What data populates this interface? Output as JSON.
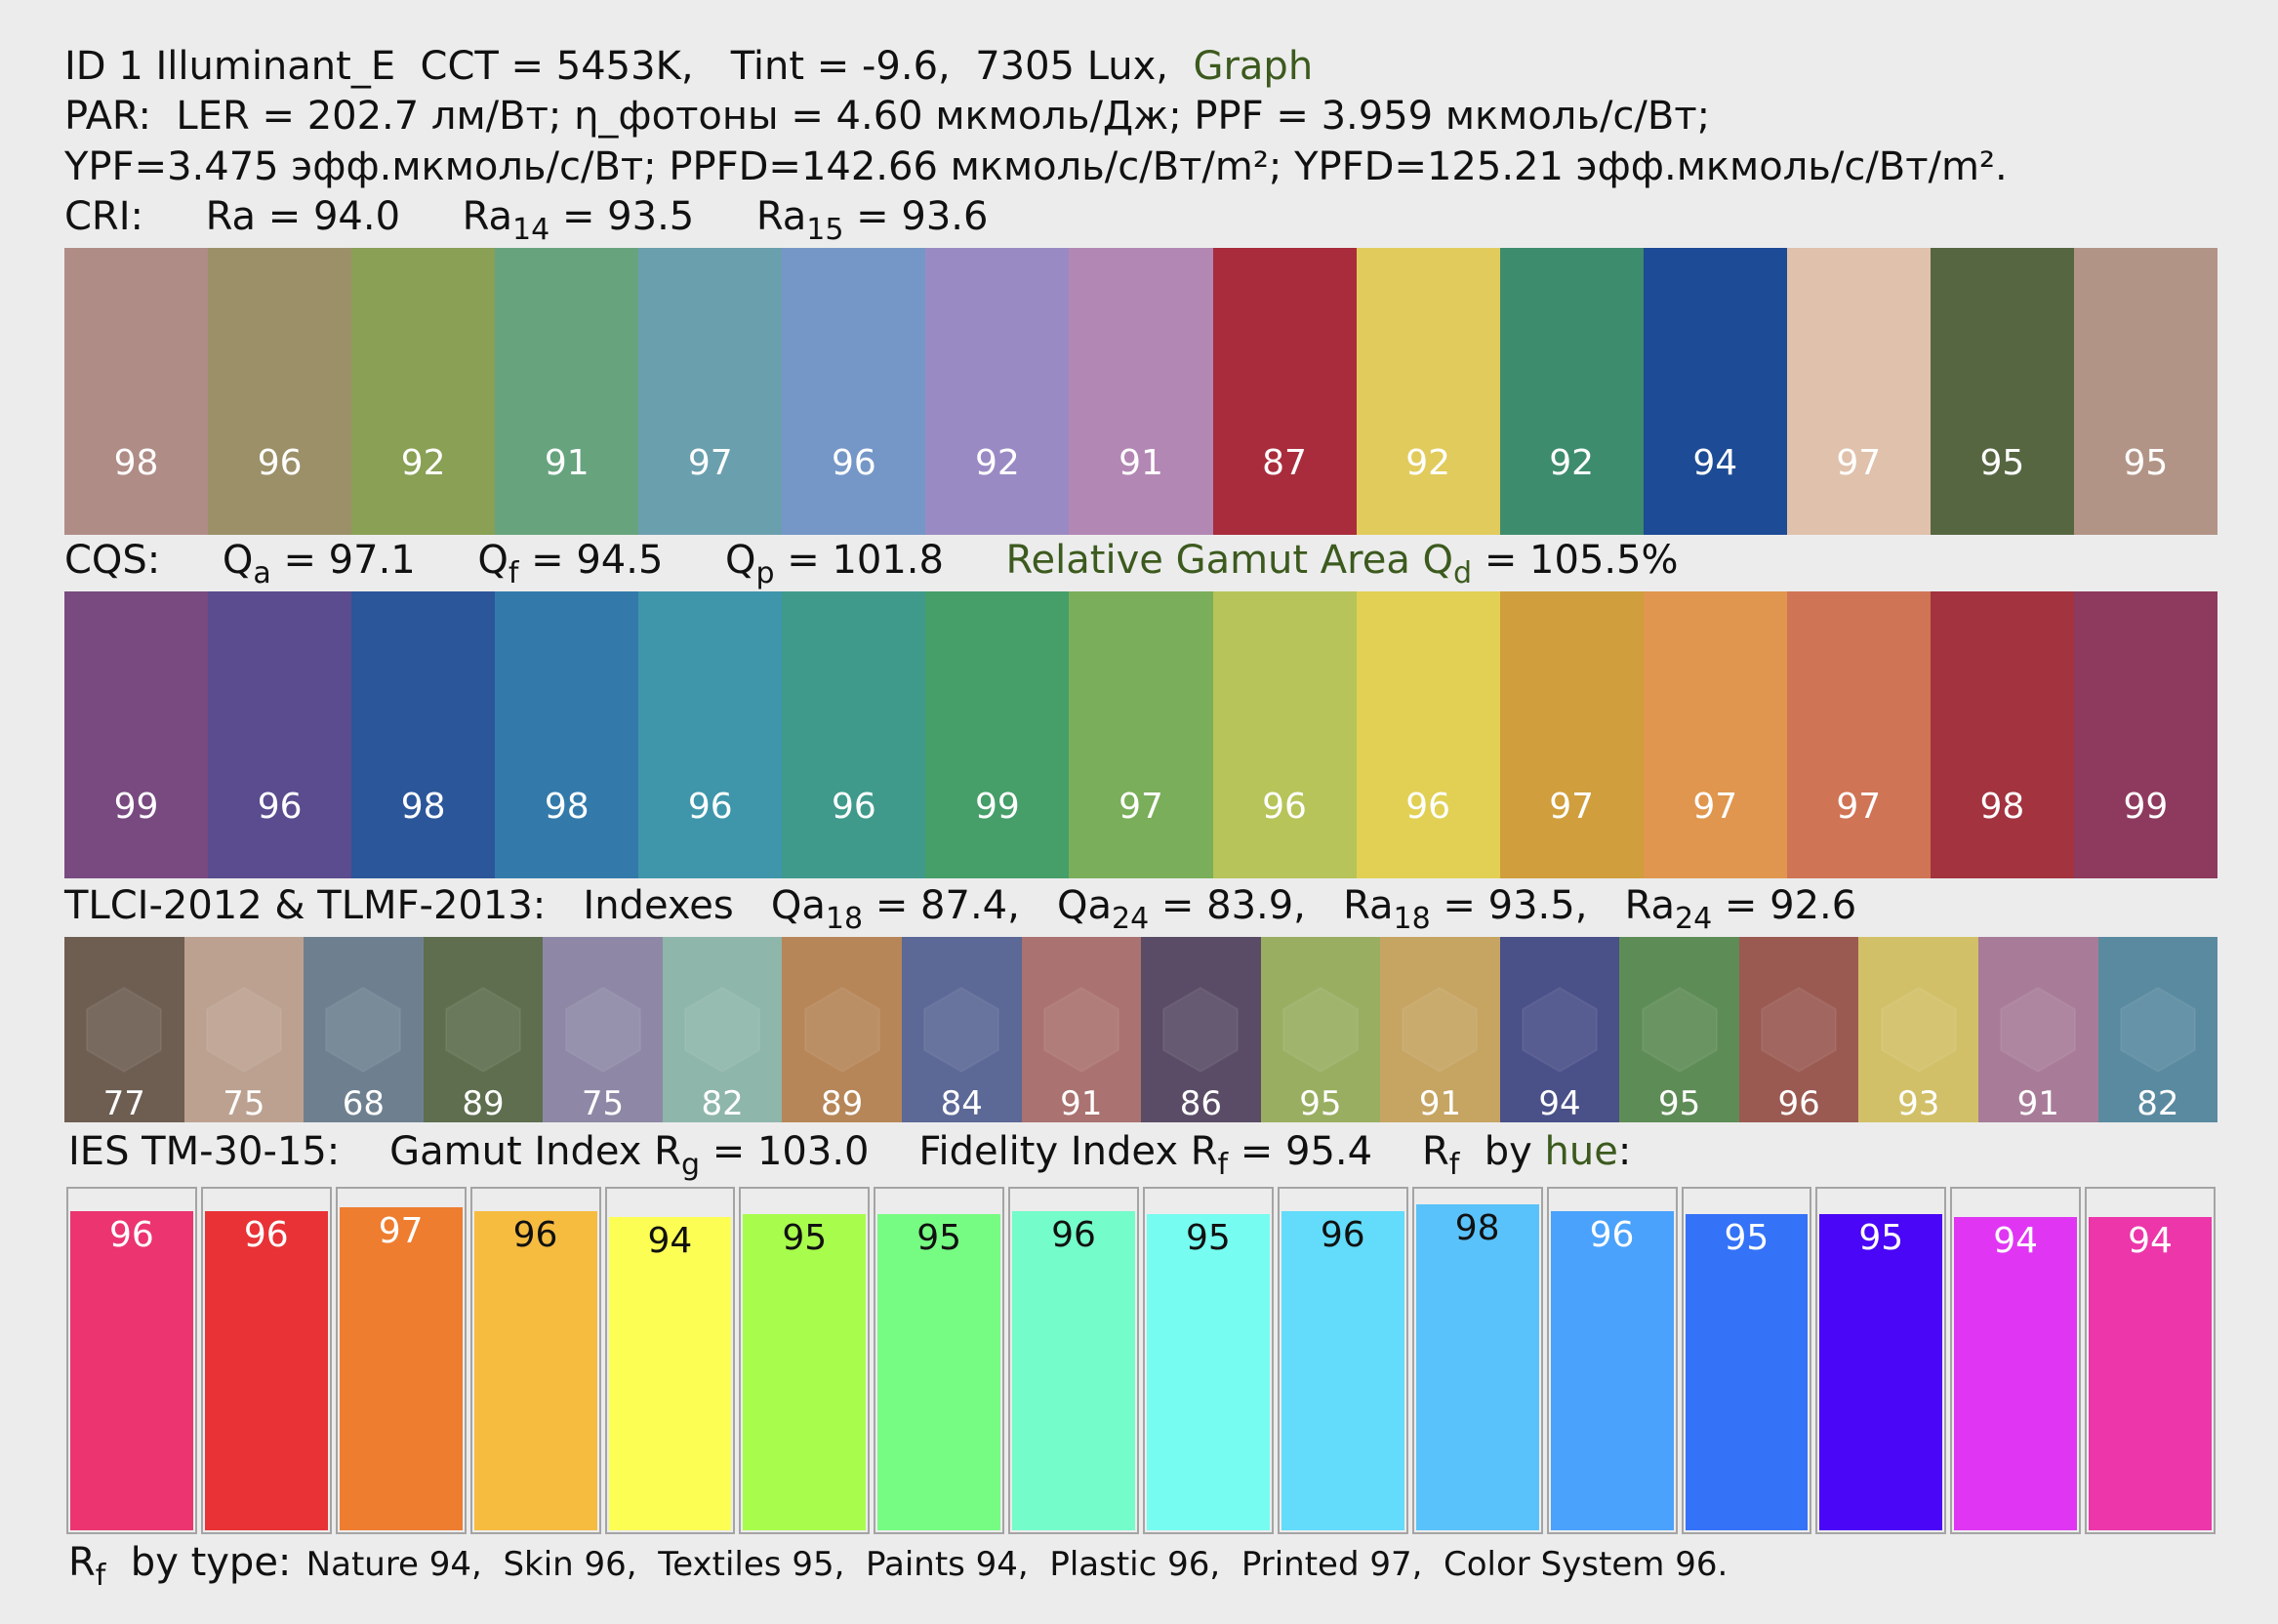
{
  "header": {
    "line1": {
      "id": "ID 1 Illuminant_E",
      "cct": "CCT = 5453K,",
      "tint": "Tint = -9.6,",
      "lux": "7305 Lux,",
      "graph_link": "Graph"
    },
    "line2": "PAR:  LER = 202.7 лм/Вт; η_фотоны = 4.60 мкмоль/Дж; PPF = 3.959 мкмоль/с/Вт;",
    "line3": "YPF=3.475 эфф.мкмоль/с/Вт; PPFD=142.66 мкмоль/с/Вт/m²; YPFD=125.21 эфф.мкмоль/с/Вт/m²."
  },
  "cri": {
    "label": "CRI:",
    "ra_label": "Ra",
    "ra_value": "= 94.0",
    "ra14_base": "Ra",
    "ra14_sub": "14",
    "ra14_value": "= 93.5",
    "ra15_base": "Ra",
    "ra15_sub": "15",
    "ra15_value": "= 93.6",
    "swatches": [
      {
        "value": "98",
        "color": "#b08c86"
      },
      {
        "value": "96",
        "color": "#9c9068"
      },
      {
        "value": "92",
        "color": "#89a055"
      },
      {
        "value": "91",
        "color": "#67a47e"
      },
      {
        "value": "97",
        "color": "#6a9fae"
      },
      {
        "value": "96",
        "color": "#7597c8"
      },
      {
        "value": "92",
        "color": "#9a8ac4"
      },
      {
        "value": "91",
        "color": "#b387b4"
      },
      {
        "value": "87",
        "color": "#a92c3c"
      },
      {
        "value": "92",
        "color": "#e1cb5c"
      },
      {
        "value": "92",
        "color": "#3e8c6e"
      },
      {
        "value": "94",
        "color": "#1d4b95"
      },
      {
        "value": "97",
        "color": "#e0c1ab"
      },
      {
        "value": "95",
        "color": "#566641"
      },
      {
        "value": "95",
        "color": "#b29486"
      }
    ]
  },
  "cqs": {
    "label": "CQS:",
    "qa_base": "Q",
    "qa_sub": "a",
    "qa_value": "= 97.1",
    "qf_base": "Q",
    "qf_sub": "f",
    "qf_value": "= 94.5",
    "qp_base": "Q",
    "qp_sub": "p",
    "qp_value": "= 101.8",
    "gamut_text": "Relative Gamut Area Q",
    "gamut_sub": "d",
    "gamut_value": "= 105.5%",
    "swatches": [
      {
        "value": "99",
        "color": "#784a80"
      },
      {
        "value": "96",
        "color": "#5a4c8e"
      },
      {
        "value": "98",
        "color": "#2b569a"
      },
      {
        "value": "98",
        "color": "#337aab"
      },
      {
        "value": "96",
        "color": "#3f96ab"
      },
      {
        "value": "96",
        "color": "#3f9a8c"
      },
      {
        "value": "99",
        "color": "#469e69"
      },
      {
        "value": "97",
        "color": "#7aae5a"
      },
      {
        "value": "96",
        "color": "#b6c459"
      },
      {
        "value": "96",
        "color": "#e1d054"
      },
      {
        "value": "97",
        "color": "#d09e3c"
      },
      {
        "value": "97",
        "color": "#e0964e"
      },
      {
        "value": "97",
        "color": "#d07456"
      },
      {
        "value": "98",
        "color": "#a2333f"
      },
      {
        "value": "99",
        "color": "#8e3a5e"
      }
    ]
  },
  "tlci": {
    "label": "TLCI-2012 & TLMF-2013:",
    "indexes_label": "Indexes",
    "qa18_base": "Qa",
    "qa18_sub": "18",
    "qa18_value": "= 87.4,",
    "qa24_base": "Qa",
    "qa24_sub": "24",
    "qa24_value": "= 83.9,",
    "ra18_base": "Ra",
    "ra18_sub": "18",
    "ra18_value": "= 93.5,",
    "ra24_base": "Ra",
    "ra24_sub": "24",
    "ra24_value": "= 92.6",
    "swatches": [
      {
        "value": "77",
        "color": "#6e5e52"
      },
      {
        "value": "75",
        "color": "#bca190"
      },
      {
        "value": "68",
        "color": "#6e8090"
      },
      {
        "value": "89",
        "color": "#5e6e4e"
      },
      {
        "value": "75",
        "color": "#8e88a6"
      },
      {
        "value": "82",
        "color": "#8eb6aa"
      },
      {
        "value": "89",
        "color": "#b68658"
      },
      {
        "value": "84",
        "color": "#5c6896"
      },
      {
        "value": "91",
        "color": "#aa7270"
      },
      {
        "value": "86",
        "color": "#5a4c66"
      },
      {
        "value": "95",
        "color": "#9aae62"
      },
      {
        "value": "91",
        "color": "#c6a462"
      },
      {
        "value": "94",
        "color": "#4a5088"
      },
      {
        "value": "95",
        "color": "#5e8c56"
      },
      {
        "value": "96",
        "color": "#9a5a52"
      },
      {
        "value": "93",
        "color": "#d2c068"
      },
      {
        "value": "91",
        "color": "#a87c98"
      },
      {
        "value": "82",
        "color": "#5a8aa0"
      }
    ]
  },
  "tm30": {
    "label": "IES TM-30-15:",
    "rg_text": "Gamut Index R",
    "rg_sub": "g",
    "rg_value": "= 103.0",
    "rf_text": "Fidelity Index R",
    "rf_sub": "f",
    "rf_value": "= 95.4",
    "byhue_base": "R",
    "byhue_sub": "f",
    "byhue_by": "by",
    "byhue_link": "hue",
    "byhue_colon": ":",
    "bars": [
      {
        "value": "96",
        "color": "#ec3470",
        "text_color": "#ffffff"
      },
      {
        "value": "96",
        "color": "#e83236",
        "text_color": "#ffffff"
      },
      {
        "value": "97",
        "color": "#ee7d30",
        "text_color": "#ffffff"
      },
      {
        "value": "96",
        "color": "#f6bc40",
        "text_color": "#111111"
      },
      {
        "value": "94",
        "color": "#fcfe54",
        "text_color": "#111111"
      },
      {
        "value": "95",
        "color": "#a8fc4c",
        "text_color": "#111111"
      },
      {
        "value": "95",
        "color": "#76fc82",
        "text_color": "#111111"
      },
      {
        "value": "96",
        "color": "#74fcca",
        "text_color": "#111111"
      },
      {
        "value": "95",
        "color": "#76fcf0",
        "text_color": "#111111"
      },
      {
        "value": "96",
        "color": "#62dcfa",
        "text_color": "#111111"
      },
      {
        "value": "98",
        "color": "#5ac2fa",
        "text_color": "#111111"
      },
      {
        "value": "96",
        "color": "#4aa2fc",
        "text_color": "#ffffff"
      },
      {
        "value": "95",
        "color": "#3472f8",
        "text_color": "#ffffff"
      },
      {
        "value": "95",
        "color": "#4a06f6",
        "text_color": "#ffffff"
      },
      {
        "value": "94",
        "color": "#e036f4",
        "text_color": "#ffffff"
      },
      {
        "value": "94",
        "color": "#ec36aa",
        "text_color": "#ffffff"
      }
    ]
  },
  "footer": {
    "base": "R",
    "sub": "f",
    "label": "by type:",
    "types": "Nature 94,  Skin 96,  Textiles 95,  Paints 94,  Plastic 96,  Printed 97,  Color System 96."
  }
}
